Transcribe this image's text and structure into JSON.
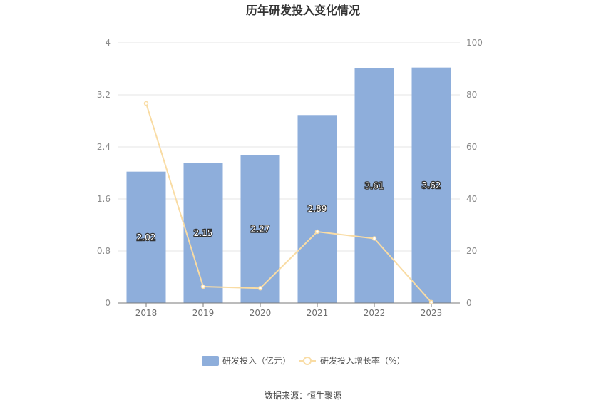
{
  "chart_data": {
    "type": "bar",
    "title": "历年研发投入变化情况",
    "categories": [
      "2018",
      "2019",
      "2020",
      "2021",
      "2022",
      "2023"
    ],
    "series": [
      {
        "name": "研发投入（亿元）",
        "type": "bar",
        "axis": "left",
        "values": [
          2.02,
          2.15,
          2.27,
          2.89,
          3.61,
          3.62
        ],
        "labels": [
          "2.02",
          "2.15",
          "2.27",
          "2.89",
          "3.61",
          "3.62"
        ],
        "color": "#8eaedb"
      },
      {
        "name": "研发投入增长率（%）",
        "type": "line",
        "axis": "right",
        "values": [
          76.7,
          6.3,
          5.7,
          27.4,
          24.8,
          0.3
        ],
        "color": "#f9dca4"
      }
    ],
    "y_left": {
      "ticks": [
        "0",
        "0.8",
        "1.6",
        "2.4",
        "3.2",
        "4"
      ],
      "lim": [
        0,
        4
      ]
    },
    "y_right": {
      "ticks": [
        "0",
        "20",
        "40",
        "60",
        "80",
        "100"
      ],
      "lim": [
        0,
        100
      ]
    },
    "grid": true,
    "legend": "bottom-center"
  },
  "source": "数据来源：恒生聚源",
  "colors": {
    "grid": "#e6e6e6",
    "axis": "#7a7a7a",
    "bar": "#8eaedb",
    "line": "#f9dca4"
  }
}
